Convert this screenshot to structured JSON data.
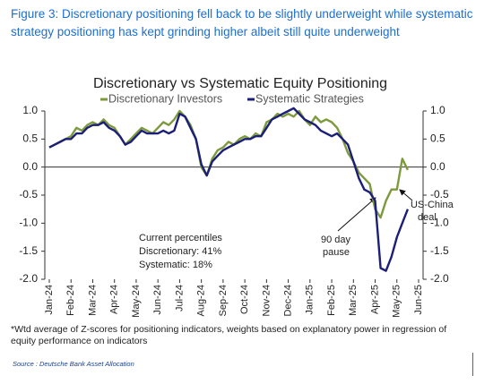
{
  "figure_caption": "Figure 3: Discretionary positioning fell back to be slightly underweight while systematic strategy positioning has kept grinding higher albeit still quite underweight",
  "footnote": "*Wtd average of Z-scores for positioning indicators, weights based on explanatory power in regression of equity performance on indicators",
  "source": "Source : Deutsche Bank Asset Allocation",
  "chart_data": {
    "type": "line",
    "title": "Discretionary  vs Systematic Equity Positioning",
    "categories": [
      "Jan-24",
      null,
      null,
      null,
      "Feb-24",
      null,
      null,
      null,
      "Mar-24",
      null,
      null,
      null,
      "Apr-24",
      null,
      null,
      null,
      "May-24",
      null,
      null,
      null,
      "Jun-24",
      null,
      null,
      null,
      "Jul-24",
      null,
      null,
      null,
      "Aug-24",
      null,
      null,
      null,
      "Sep-24",
      null,
      null,
      null,
      "Oct-24",
      null,
      null,
      null,
      "Nov-24",
      null,
      null,
      null,
      "Dec-24",
      null,
      null,
      null,
      "Jan-25",
      null,
      null,
      null,
      "Feb-25",
      null,
      null,
      null,
      "Mar-25",
      null,
      null,
      null,
      "Apr-25",
      null,
      null,
      null,
      "May-25",
      null,
      null,
      null,
      "Jun-25"
    ],
    "series": [
      {
        "name": "Discretionary Investors",
        "color": "#7d9a3c",
        "values": [
          0.35,
          0.4,
          0.45,
          0.5,
          0.55,
          0.7,
          0.65,
          0.75,
          0.8,
          0.75,
          0.85,
          0.75,
          0.7,
          0.55,
          0.4,
          0.5,
          0.6,
          0.7,
          0.65,
          0.6,
          0.7,
          0.8,
          0.75,
          0.85,
          1.0,
          0.9,
          0.75,
          0.5,
          0.0,
          -0.15,
          0.15,
          0.3,
          0.35,
          0.45,
          0.4,
          0.5,
          0.55,
          0.5,
          0.6,
          0.55,
          0.8,
          0.85,
          0.95,
          0.9,
          0.95,
          0.9,
          1.0,
          0.85,
          0.75,
          0.9,
          0.8,
          0.85,
          0.8,
          0.7,
          0.5,
          0.25,
          0.1,
          -0.1,
          -0.2,
          -0.3,
          -0.75,
          -0.9,
          -0.6,
          -0.4,
          -0.4,
          0.15,
          -0.05,
          null,
          null
        ]
      },
      {
        "name": "Systematic Strategies",
        "color": "#1b1f78",
        "values": [
          0.35,
          0.4,
          0.45,
          0.5,
          0.5,
          0.6,
          0.6,
          0.7,
          0.75,
          0.75,
          0.8,
          0.7,
          0.65,
          0.55,
          0.4,
          0.45,
          0.55,
          0.65,
          0.6,
          0.6,
          0.6,
          0.65,
          0.6,
          0.65,
          0.95,
          0.9,
          0.7,
          0.5,
          0.05,
          -0.15,
          0.1,
          0.2,
          0.3,
          0.35,
          0.4,
          0.45,
          0.5,
          0.5,
          0.55,
          0.55,
          0.7,
          0.85,
          0.9,
          0.95,
          1.0,
          1.05,
          0.95,
          0.85,
          0.8,
          0.75,
          0.65,
          0.6,
          0.55,
          0.6,
          0.5,
          0.4,
          0.1,
          -0.2,
          -0.4,
          -0.45,
          -0.6,
          -1.8,
          -1.85,
          -1.6,
          -1.25,
          -1.0,
          -0.75,
          null,
          null
        ]
      }
    ],
    "ylim": [
      -2.0,
      1.0
    ],
    "yticks": [
      {
        "value": -2,
        "label": "-2.0"
      },
      {
        "value": -1.5,
        "label": "-1.5"
      },
      {
        "value": -1,
        "label": "-1.0"
      },
      {
        "value": -0.5,
        "label": "-0.5"
      },
      {
        "value": 0,
        "label": "0.0"
      },
      {
        "value": 0.5,
        "label": "0.5"
      },
      {
        "value": 1,
        "label": "1.0"
      }
    ],
    "annotations": [
      "Current percentiles",
      "Discretionary: 41%",
      "Systematic: 18%",
      "90 day",
      "pause",
      "US-China",
      "deal"
    ]
  }
}
